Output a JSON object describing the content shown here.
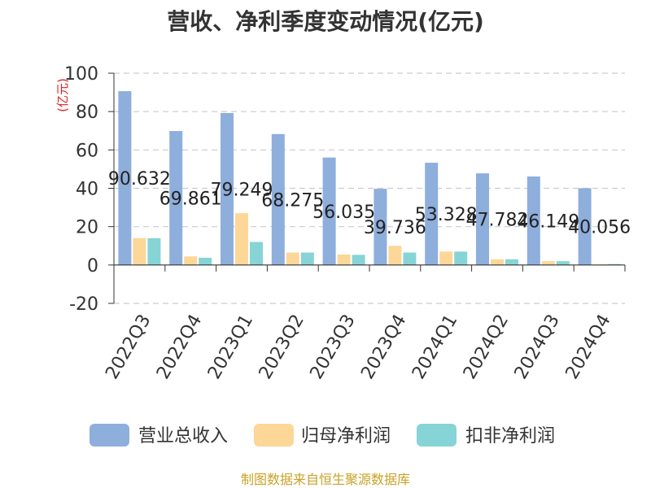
{
  "chart_data": {
    "type": "bar",
    "title": "营收、净利季度变动情况(亿元)",
    "unit": "(亿元)",
    "categories": [
      "2022Q3",
      "2022Q4",
      "2023Q1",
      "2023Q2",
      "2023Q3",
      "2023Q4",
      "2024Q1",
      "2024Q2",
      "2024Q3",
      "2024Q4"
    ],
    "series": [
      {
        "name": "营业总收入",
        "color": "#8eaedc",
        "values": [
          90.632,
          69.861,
          79.249,
          68.275,
          56.035,
          39.736,
          53.328,
          47.782,
          46.149,
          40.056
        ],
        "labels": [
          "90.632",
          "69.861",
          "79.249",
          "68.275",
          "56.035",
          "39.736",
          "53.328",
          "47.782",
          "46.149",
          "40.056"
        ]
      },
      {
        "name": "归母净利润",
        "color": "#fdd798",
        "values": [
          14.0,
          4.5,
          27.0,
          6.5,
          5.5,
          10.0,
          7.0,
          3.0,
          2.0,
          -0.3
        ]
      },
      {
        "name": "扣非净利润",
        "color": "#86d4d6",
        "values": [
          14.0,
          3.8,
          12.0,
          6.5,
          5.3,
          6.5,
          7.0,
          3.0,
          2.0,
          0.5
        ]
      }
    ],
    "ylim": [
      -20,
      100
    ],
    "yticks": [
      -20,
      0,
      20,
      40,
      60,
      80,
      100
    ],
    "grid": true,
    "legend_position": "bottom"
  },
  "source": "制图数据来自恒生聚源数据库"
}
